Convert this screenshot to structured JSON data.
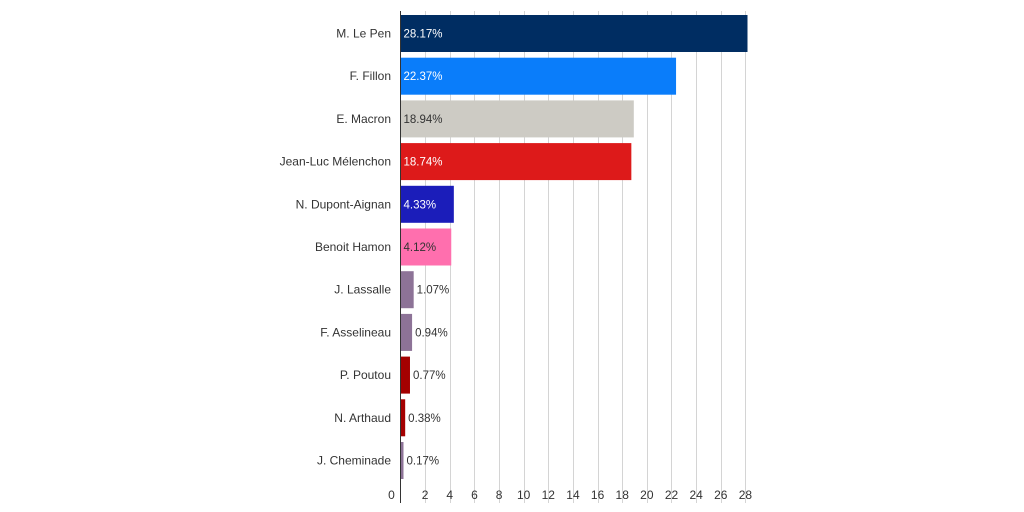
{
  "chart_data": {
    "type": "bar",
    "orientation": "horizontal",
    "categories": [
      "M. Le Pen",
      "F. Fillon",
      "E. Macron",
      "Jean-Luc Mélenchon",
      "N. Dupont-Aignan",
      "Benoit Hamon",
      "J. Lassalle",
      "F. Asselineau",
      "P. Poutou",
      "N. Arthaud",
      "J. Cheminade"
    ],
    "values": [
      28.17,
      22.37,
      18.94,
      18.74,
      4.33,
      4.12,
      1.07,
      0.94,
      0.77,
      0.38,
      0.17
    ],
    "data_labels": [
      "28.17%",
      "22.37%",
      "18.94%",
      "18.74%",
      "4.33%",
      "4.12%",
      "1.07%",
      "0.94%",
      "0.77%",
      "0.38%",
      "0.17%"
    ],
    "colors": [
      "#002d62",
      "#0a7dfa",
      "#cdcbc4",
      "#dd1a1a",
      "#1b1dba",
      "#ff6fae",
      "#8d7397",
      "#8d7397",
      "#a40000",
      "#a40000",
      "#8d7397"
    ],
    "label_colors": [
      "#ffffff",
      "#ffffff",
      "#333333",
      "#ffffff",
      "#ffffff",
      "#333333",
      "#333333",
      "#333333",
      "#333333",
      "#333333",
      "#333333"
    ],
    "x_ticks": [
      0,
      2,
      4,
      6,
      8,
      10,
      12,
      14,
      16,
      18,
      20,
      22,
      24,
      26,
      28
    ],
    "xlim": [
      0,
      28.17
    ],
    "grid": true,
    "title": "",
    "xlabel": "",
    "ylabel": ""
  }
}
